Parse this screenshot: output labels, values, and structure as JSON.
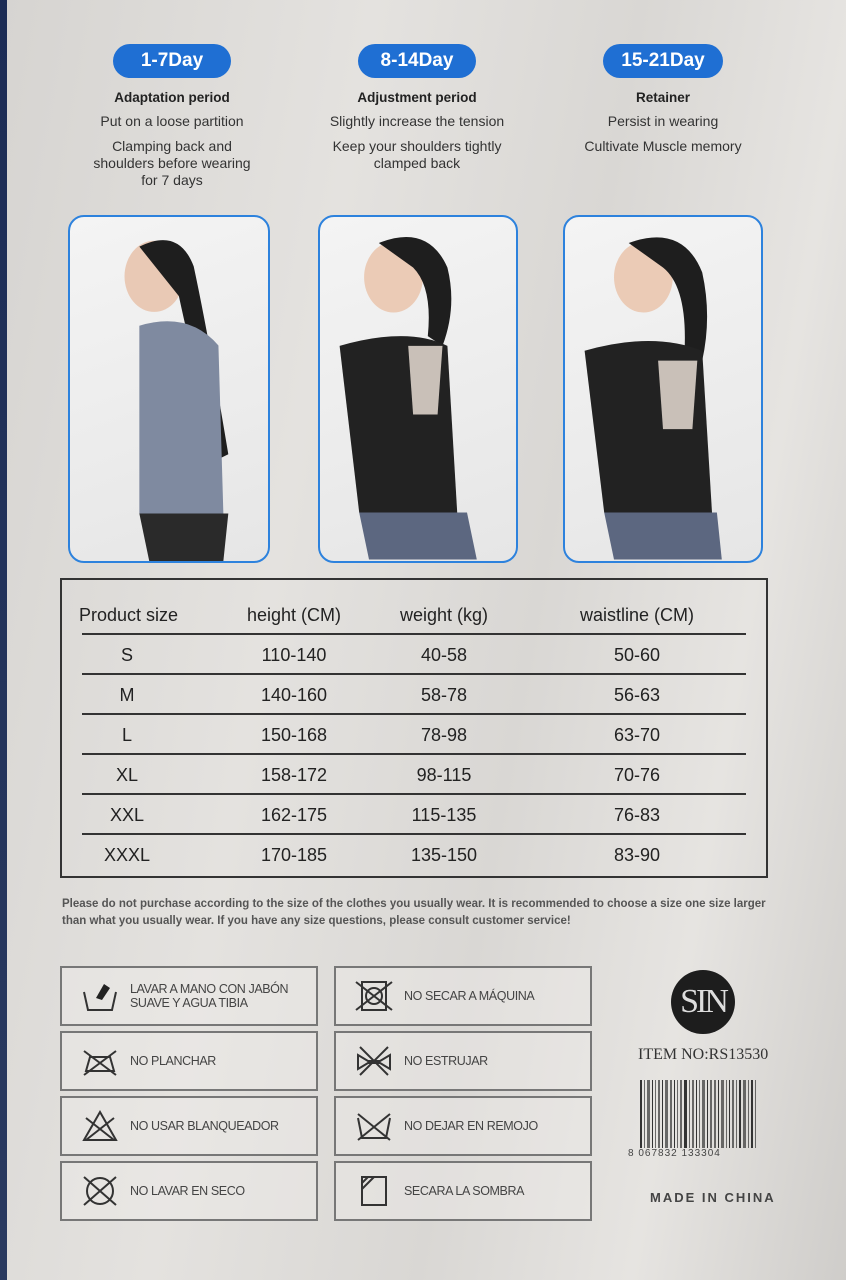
{
  "colors": {
    "accent": "#1f6fd3",
    "frame": "#2d82dd"
  },
  "stages": [
    {
      "label": "1-7Day",
      "title": "Adaptation period",
      "lines": [
        "Put on a loose partition",
        "Clamping back and shoulders before wearing for 7 days"
      ]
    },
    {
      "label": "8-14Day",
      "title": "Adjustment period",
      "lines": [
        "Slightly increase the tension",
        "Keep your shoulders tightly clamped back"
      ]
    },
    {
      "label": "15-21Day",
      "title": "Retainer",
      "lines": [
        "Persist in wearing",
        "Cultivate Muscle memory"
      ]
    }
  ],
  "size_table": {
    "headers": [
      "Product size",
      "height  (CM)",
      "weight  (kg)",
      "waistline  (CM)"
    ],
    "rows": [
      [
        "S",
        "110-140",
        "40-58",
        "50-60"
      ],
      [
        "M",
        "140-160",
        "58-78",
        "56-63"
      ],
      [
        "L",
        "150-168",
        "78-98",
        "63-70"
      ],
      [
        "XL",
        "158-172",
        "98-115",
        "70-76"
      ],
      [
        "XXL",
        "162-175",
        "115-135",
        "76-83"
      ],
      [
        "XXXL",
        "170-185",
        "135-150",
        "83-90"
      ]
    ]
  },
  "note": "Please do not purchase according to the size of the clothes you usually wear. It is recommended to choose a size one size larger than what you usually wear. If you have any size questions, please consult customer service!",
  "care": [
    {
      "icon": "hand-wash-icon",
      "label": "LAVAR A MANO CON JABÓN SUAVE Y AGUA TIBIA"
    },
    {
      "icon": "no-tumble-dry-icon",
      "label": "NO SECAR A MÁQUINA"
    },
    {
      "icon": "no-iron-icon",
      "label": "NO PLANCHAR"
    },
    {
      "icon": "no-wring-icon",
      "label": "NO ESTRUJAR"
    },
    {
      "icon": "no-bleach-icon",
      "label": "NO USAR BLANQUEADOR"
    },
    {
      "icon": "no-soak-icon",
      "label": "NO DEJAR EN REMOJO"
    },
    {
      "icon": "no-dry-clean-icon",
      "label": "NO LAVAR EN SECO"
    },
    {
      "icon": "dry-in-shade-icon",
      "label": "SECARA LA SOMBRA"
    }
  ],
  "brand": {
    "logo": "SIN",
    "item_no": "ITEM NO:RS13530",
    "barcode_number": "8 067832 133304",
    "made_in": "MADE IN CHINA"
  }
}
